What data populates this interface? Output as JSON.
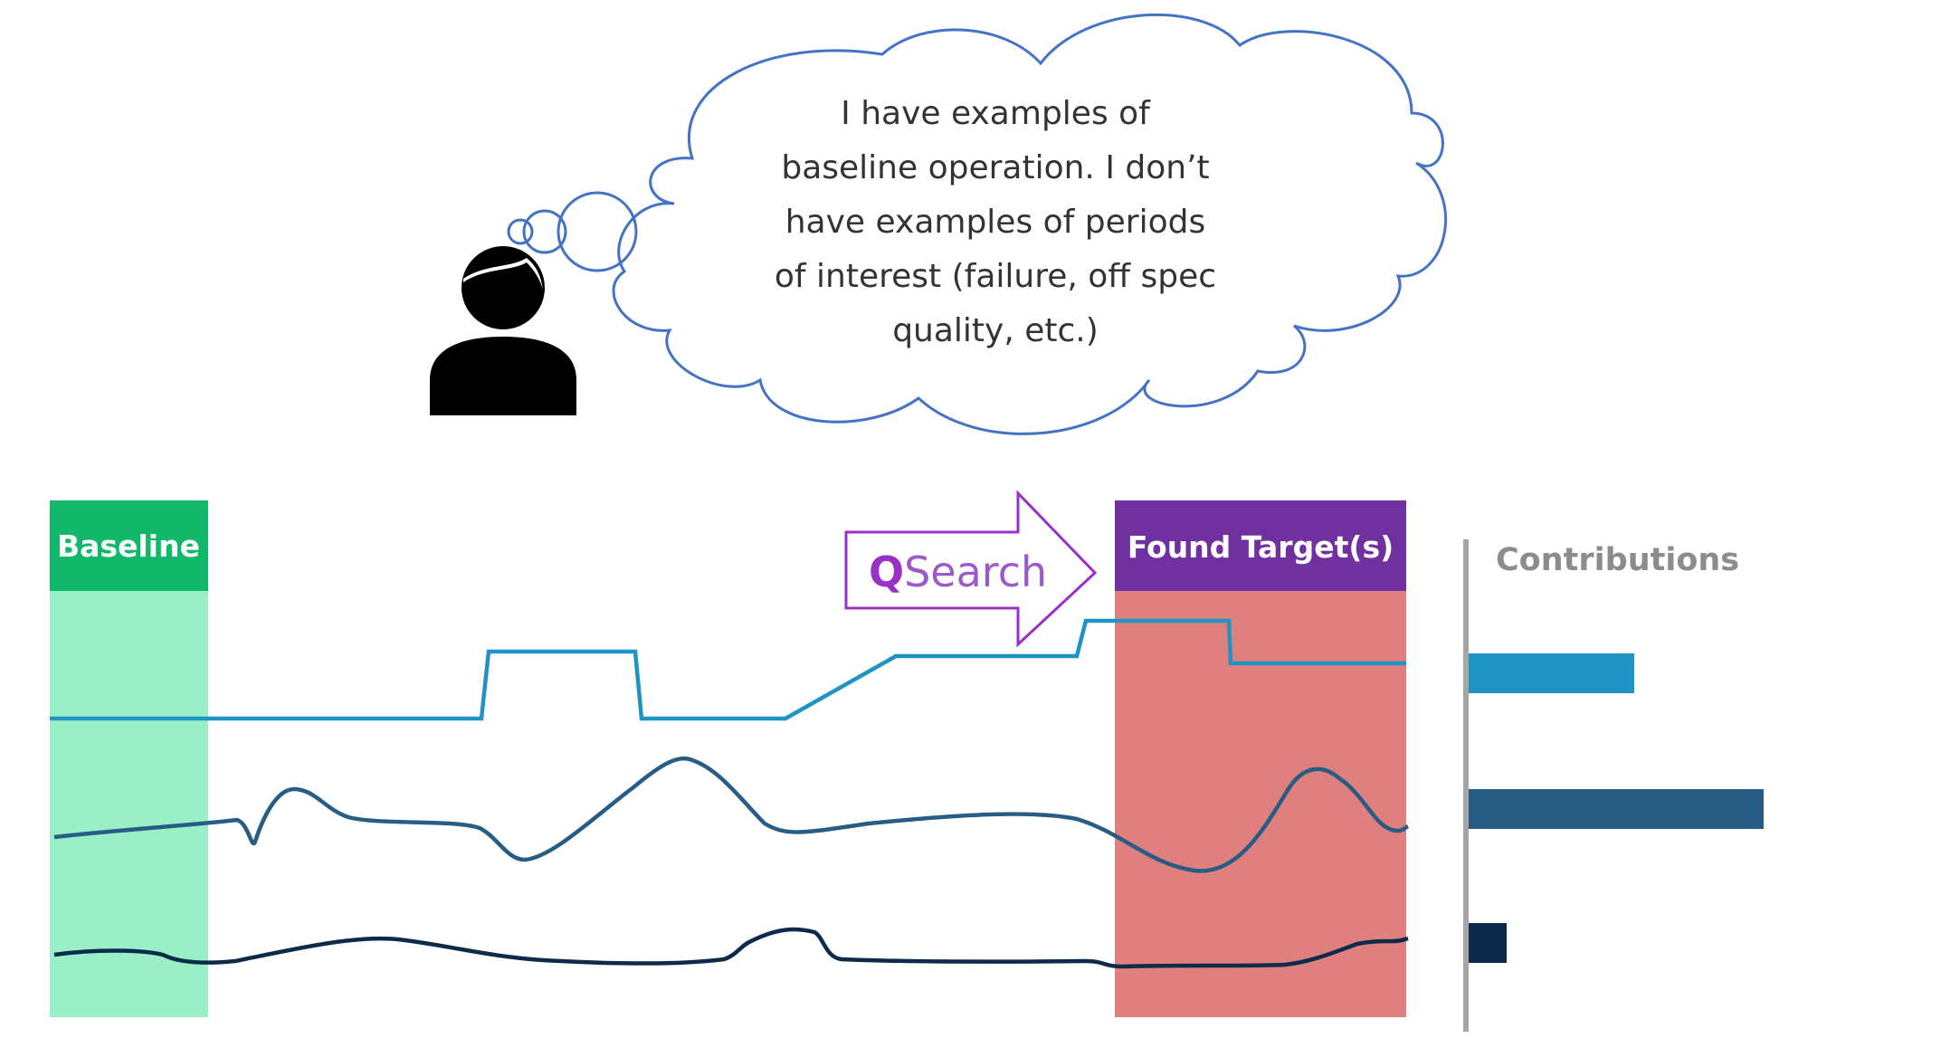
{
  "thought": {
    "lines": [
      "I have examples of",
      "baseline operation. I don’t",
      "have examples of periods",
      "of interest (failure, off spec",
      "quality, etc.)"
    ]
  },
  "baseline": {
    "label": "Baseline",
    "header_color": "#12b86a",
    "body_color": "#9af0c6"
  },
  "search": {
    "logo_letter": "Q",
    "logo_rest": "Search",
    "color": "#9b30c9"
  },
  "target": {
    "label": "Found Target(s)",
    "header_color": "#7030a0",
    "body_color": "#df807e"
  },
  "signals": [
    {
      "name": "signal-1",
      "color": "#1f93c4"
    },
    {
      "name": "signal-2",
      "color": "#275d85"
    },
    {
      "name": "signal-3",
      "color": "#0c2a4a"
    }
  ],
  "contributions": {
    "title": "Contributions",
    "bars": [
      {
        "value": 0.56,
        "color": "#1f93c4"
      },
      {
        "value": 1.0,
        "color": "#275d85"
      },
      {
        "value": 0.13,
        "color": "#0c2a4a"
      }
    ]
  },
  "icons": {
    "person": "person-icon",
    "thought": "thought-cloud-icon",
    "arrow": "arrow-right-icon"
  }
}
